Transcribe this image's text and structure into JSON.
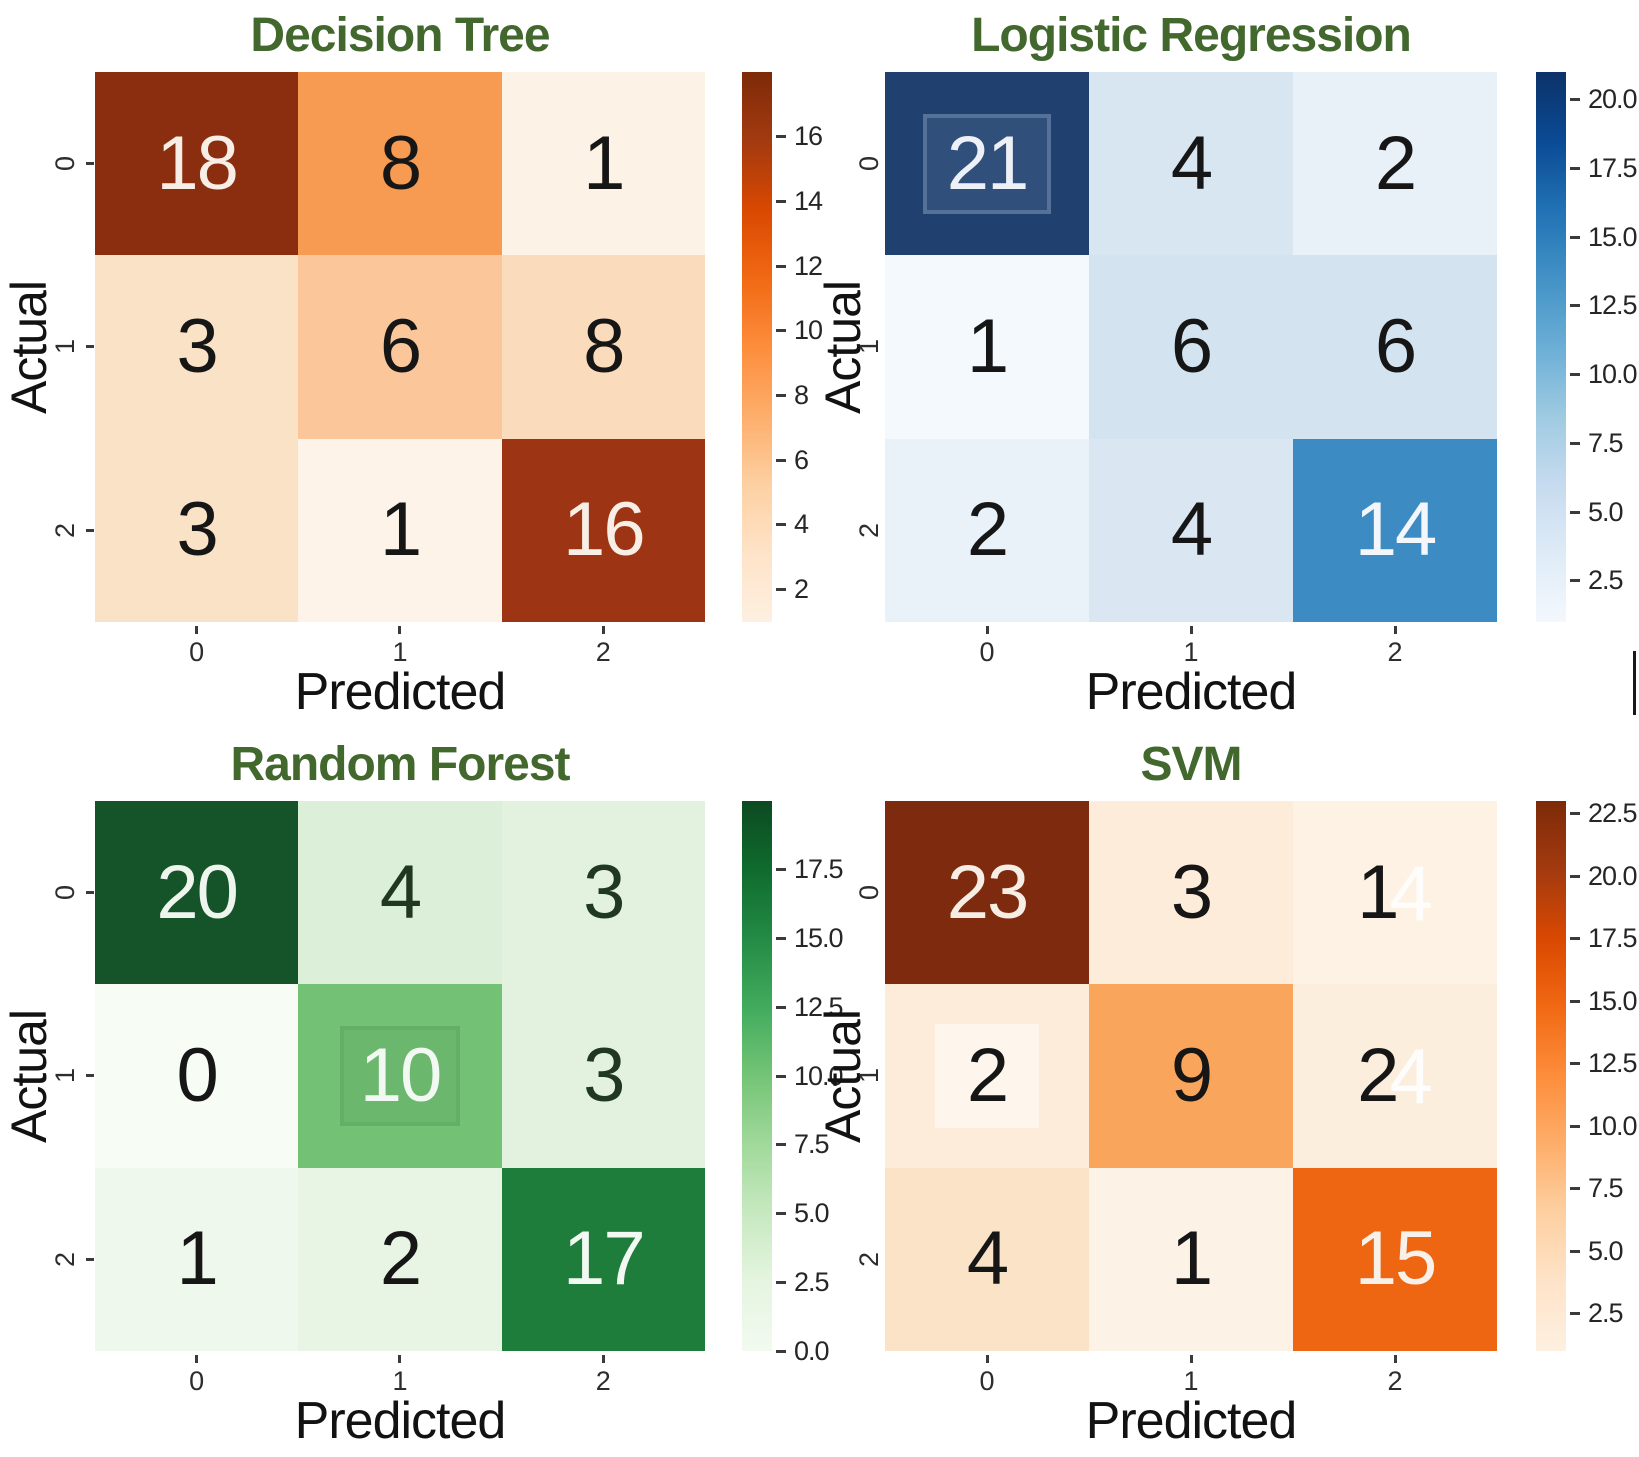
{
  "figure": {
    "background": "#ffffff",
    "title_color": "#42682e",
    "label_color": "#121212",
    "tick_color": "#2d2d2d"
  },
  "chart_data": [
    {
      "type": "heatmap",
      "title": "Decision Tree",
      "xlabel": "Predicted",
      "ylabel": "Actual",
      "x_tick_labels": [
        "0",
        "1",
        "2"
      ],
      "y_tick_labels": [
        "0",
        "1",
        "2"
      ],
      "matrix": [
        [
          18,
          8,
          1
        ],
        [
          3,
          6,
          8
        ],
        [
          3,
          1,
          16
        ]
      ],
      "colormap": "Oranges",
      "colorbar_range": [
        1,
        18
      ],
      "colorbar_ticks": [
        2,
        4,
        6,
        8,
        10,
        12,
        14,
        16
      ],
      "legend_position": "right-colorbar",
      "grid": false
    },
    {
      "type": "heatmap",
      "title": "Logistic Regression",
      "xlabel": "Predicted",
      "ylabel": "Actual",
      "x_tick_labels": [
        "0",
        "1",
        "2"
      ],
      "y_tick_labels": [
        "0",
        "1",
        "2"
      ],
      "matrix": [
        [
          21,
          4,
          2
        ],
        [
          1,
          6,
          6
        ],
        [
          2,
          4,
          14
        ]
      ],
      "colormap": "Blues",
      "colorbar_range": [
        1,
        21
      ],
      "colorbar_ticks": [
        2.5,
        5.0,
        7.5,
        10.0,
        12.5,
        15.0,
        17.5,
        20.0
      ],
      "legend_position": "right-colorbar",
      "grid": false
    },
    {
      "type": "heatmap",
      "title": "Random Forest",
      "xlabel": "Predicted",
      "ylabel": "Actual",
      "x_tick_labels": [
        "0",
        "1",
        "2"
      ],
      "y_tick_labels": [
        "0",
        "1",
        "2"
      ],
      "matrix": [
        [
          20,
          4,
          3
        ],
        [
          0,
          10,
          3
        ],
        [
          1,
          2,
          17
        ]
      ],
      "colormap": "Greens",
      "colorbar_range": [
        0,
        20
      ],
      "colorbar_ticks": [
        0.0,
        2.5,
        5.0,
        7.5,
        10.0,
        12.5,
        15.0,
        17.5
      ],
      "legend_position": "right-colorbar",
      "grid": false
    },
    {
      "type": "heatmap",
      "title": "SVM",
      "xlabel": "Predicted",
      "ylabel": "Actual",
      "x_tick_labels": [
        "0",
        "1",
        "2"
      ],
      "y_tick_labels": [
        "0",
        "1",
        "2"
      ],
      "matrix": [
        [
          23,
          3,
          1
        ],
        [
          2,
          9,
          2
        ],
        [
          4,
          1,
          15
        ]
      ],
      "colormap": "Oranges",
      "colorbar_range": [
        1,
        23
      ],
      "colorbar_ticks": [
        2.5,
        5.0,
        7.5,
        10.0,
        12.5,
        15.0,
        17.5,
        20.0,
        22.5
      ],
      "legend_position": "right-colorbar",
      "grid": false
    }
  ],
  "panels": [
    {
      "id": "decision-tree",
      "side": "left",
      "title": "Decision Tree",
      "xlabel": "Predicted",
      "ylabel": "Actual",
      "xticks": [
        "0",
        "1",
        "2"
      ],
      "yticks": [
        "0",
        "1",
        "2"
      ],
      "colormap": "oranges",
      "colorbar": {
        "vmin": 1,
        "vmax": 18,
        "ticks": [
          {
            "label": "2",
            "value": 2
          },
          {
            "label": "4",
            "value": 4
          },
          {
            "label": "6",
            "value": 6
          },
          {
            "label": "8",
            "value": 8
          },
          {
            "label": "10",
            "value": 10
          },
          {
            "label": "12",
            "value": 12
          },
          {
            "label": "14",
            "value": 14
          },
          {
            "label": "16",
            "value": 16
          }
        ]
      },
      "cells": [
        {
          "text": "18",
          "bg": "#8b2d0f",
          "fg": "#f7efe5"
        },
        {
          "text": "8",
          "bg": "#f89b52",
          "fg": "#161616"
        },
        {
          "text": "1",
          "bg": "#fdf2e6",
          "fg": "#161616"
        },
        {
          "text": "3",
          "bg": "#fae2c6",
          "fg": "#161616"
        },
        {
          "text": "6",
          "bg": "#fbc79a",
          "fg": "#161616"
        },
        {
          "text": "8",
          "bg": "#fadcbd",
          "fg": "#161616"
        },
        {
          "text": "3",
          "bg": "#fae2c6",
          "fg": "#161616"
        },
        {
          "text": "1",
          "bg": "#fdf3e9",
          "fg": "#161616"
        },
        {
          "text": "16",
          "bg": "#9d3514",
          "fg": "#f7efe5"
        }
      ]
    },
    {
      "id": "logistic-regression",
      "side": "right",
      "title": "Logistic Regression",
      "xlabel": "Predicted",
      "ylabel": "Actual",
      "xticks": [
        "0",
        "1",
        "2"
      ],
      "yticks": [
        "0",
        "1",
        "2"
      ],
      "colormap": "blues",
      "colorbar": {
        "vmin": 1,
        "vmax": 21,
        "ticks": [
          {
            "label": "2.5",
            "value": 2.5
          },
          {
            "label": "5.0",
            "value": 5
          },
          {
            "label": "7.5",
            "value": 7.5
          },
          {
            "label": "10.0",
            "value": 10
          },
          {
            "label": "12.5",
            "value": 12.5
          },
          {
            "label": "15.0",
            "value": 15
          },
          {
            "label": "17.5",
            "value": 17.5
          },
          {
            "label": "20.0",
            "value": 20
          }
        ]
      },
      "cells": [
        {
          "text": "21",
          "bg": "#20406f",
          "fg": "#edf1f7",
          "frame": "light"
        },
        {
          "text": "4",
          "bg": "#d8e6f2",
          "fg": "#161616"
        },
        {
          "text": "2",
          "bg": "#e8f0f8",
          "fg": "#161616"
        },
        {
          "text": "1",
          "bg": "#f4f9fd",
          "fg": "#161616"
        },
        {
          "text": "6",
          "bg": "#d3e3f0",
          "fg": "#161616"
        },
        {
          "text": "6",
          "bg": "#d3e3f0",
          "fg": "#161616"
        },
        {
          "text": "2",
          "bg": "#eaf2f9",
          "fg": "#161616"
        },
        {
          "text": "4",
          "bg": "#dae7f3",
          "fg": "#161616"
        },
        {
          "text": "14",
          "bg": "#3d8bc3",
          "fg": "#f3f7fb"
        }
      ]
    },
    {
      "id": "random-forest",
      "side": "left",
      "title": "Random Forest",
      "xlabel": "Predicted",
      "ylabel": "Actual",
      "xticks": [
        "0",
        "1",
        "2"
      ],
      "yticks": [
        "0",
        "1",
        "2"
      ],
      "colormap": "greens",
      "colorbar": {
        "vmin": 0,
        "vmax": 20,
        "ticks": [
          {
            "label": "0.0",
            "value": 0
          },
          {
            "label": "2.5",
            "value": 2.5
          },
          {
            "label": "5.0",
            "value": 5
          },
          {
            "label": "7.5",
            "value": 7.5
          },
          {
            "label": "10.0",
            "value": 10
          },
          {
            "label": "12.5",
            "value": 12.5
          },
          {
            "label": "15.0",
            "value": 15
          },
          {
            "label": "17.5",
            "value": 17.5
          }
        ]
      },
      "cells": [
        {
          "text": "20",
          "bg": "#155329",
          "fg": "#edf5ed"
        },
        {
          "text": "4",
          "bg": "#dcefd8",
          "fg": "#20381f"
        },
        {
          "text": "3",
          "bg": "#e3f2df",
          "fg": "#20381f"
        },
        {
          "text": "0",
          "bg": "#f7fcf5",
          "fg": "#161616"
        },
        {
          "text": "10",
          "bg": "#73c175",
          "fg": "#f2f9f2",
          "frame": "dark"
        },
        {
          "text": "3",
          "bg": "#e3f2df",
          "fg": "#20381f"
        },
        {
          "text": "1",
          "bg": "#eff8ec",
          "fg": "#161616"
        },
        {
          "text": "2",
          "bg": "#e8f5e4",
          "fg": "#161616"
        },
        {
          "text": "17",
          "bg": "#1e7d3b",
          "fg": "#f2f9f2"
        }
      ]
    },
    {
      "id": "svm",
      "side": "right",
      "title": "SVM",
      "xlabel": "Predicted",
      "ylabel": "Actual",
      "xticks": [
        "0",
        "1",
        "2"
      ],
      "yticks": [
        "0",
        "1",
        "2"
      ],
      "colormap": "oranges",
      "colorbar": {
        "vmin": 1,
        "vmax": 23,
        "ticks": [
          {
            "label": "2.5",
            "value": 2.5
          },
          {
            "label": "5.0",
            "value": 5
          },
          {
            "label": "7.5",
            "value": 7.5
          },
          {
            "label": "10.0",
            "value": 10
          },
          {
            "label": "12.5",
            "value": 12.5
          },
          {
            "label": "15.0",
            "value": 15
          },
          {
            "label": "17.5",
            "value": 17.5
          },
          {
            "label": "20.0",
            "value": 20
          },
          {
            "label": "22.5",
            "value": 22.5
          }
        ]
      },
      "cells": [
        {
          "text": "23",
          "bg": "#7e2a0e",
          "fg": "#f6eee4"
        },
        {
          "text": "3",
          "bg": "#fdecd9",
          "fg": "#161616"
        },
        {
          "text": "1",
          "bg": "#fdf2e4",
          "fg": "#161616",
          "ghost": "4"
        },
        {
          "text": "2",
          "bg": "#fcecd9",
          "fg": "#161616",
          "patch": true
        },
        {
          "text": "9",
          "bg": "#f9a55c",
          "fg": "#161616"
        },
        {
          "text": "2",
          "bg": "#fceedd",
          "fg": "#161616",
          "ghost": "4"
        },
        {
          "text": "4",
          "bg": "#fbe3c7",
          "fg": "#161616"
        },
        {
          "text": "1",
          "bg": "#fdf2e6",
          "fg": "#161616"
        },
        {
          "text": "15",
          "bg": "#ee6512",
          "fg": "#f8f1e9"
        }
      ]
    }
  ]
}
